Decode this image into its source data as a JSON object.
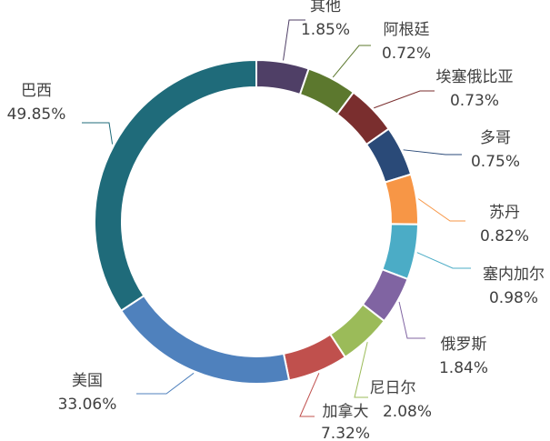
{
  "chart_data": {
    "type": "pie",
    "variant": "donut",
    "legend": "none",
    "start": "top",
    "direction": "clockwise",
    "slices": [
      {
        "label": "其他",
        "value": 1.85,
        "value_text": "1.85%",
        "color": "#4F3F66"
      },
      {
        "label": "阿根廷",
        "value": 0.72,
        "value_text": "0.72%",
        "color": "#5C782E"
      },
      {
        "label": "埃塞俄比亚",
        "value": 0.73,
        "value_text": "0.73%",
        "color": "#7A2E2E"
      },
      {
        "label": "多哥",
        "value": 0.75,
        "value_text": "0.75%",
        "color": "#2A4A78"
      },
      {
        "label": "苏丹",
        "value": 0.82,
        "value_text": "0.82%",
        "color": "#F79646"
      },
      {
        "label": "塞内加尔",
        "value": 0.98,
        "value_text": "0.98%",
        "color": "#4BACC6"
      },
      {
        "label": "俄罗斯",
        "value": 1.84,
        "value_text": "1.84%",
        "color": "#8064A2"
      },
      {
        "label": "尼日尔",
        "value": 2.08,
        "value_text": "2.08%",
        "color": "#9BBB59"
      },
      {
        "label": "加拿大",
        "value": 7.32,
        "value_text": "7.32%",
        "color": "#C0504D"
      },
      {
        "label": "美国",
        "value": 33.06,
        "value_text": "33.06%",
        "color": "#4F81BD"
      },
      {
        "label": "巴西",
        "value": 49.85,
        "value_text": "49.85%",
        "color": "#1F6B7A"
      }
    ]
  }
}
